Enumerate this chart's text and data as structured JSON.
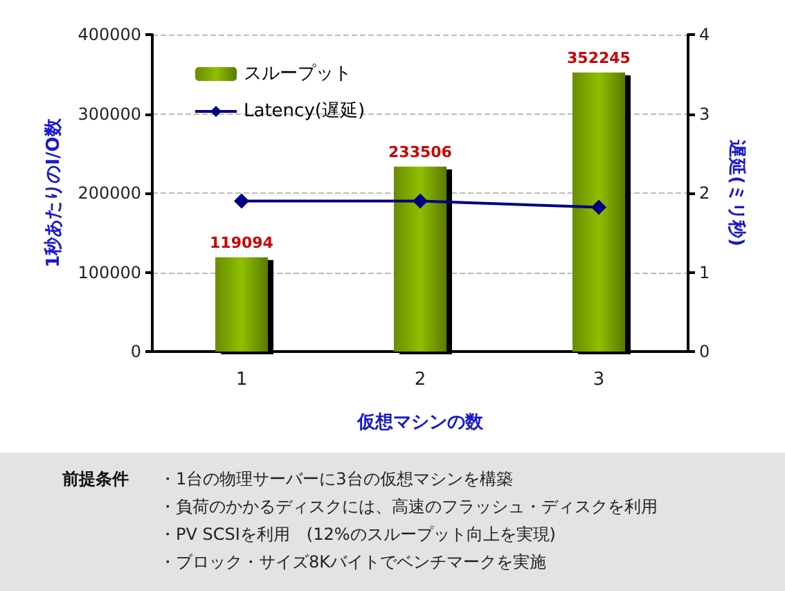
{
  "chart_data": {
    "type": "bar",
    "categories": [
      "1",
      "2",
      "3"
    ],
    "xlabel": "仮想マシンの数",
    "ylabel": "1秒あたりのI/O数",
    "y2label": "遅延(ミリ秒)",
    "series": [
      {
        "name": "スループット",
        "color": "#8fbf00",
        "values": [
          119094,
          233506,
          352245
        ],
        "data_labels": true
      },
      {
        "name": "Latency(遅延)",
        "type": "line",
        "axis": "y2",
        "color": "#000080",
        "values": [
          1.9,
          1.9,
          1.82
        ],
        "marker": "diamond"
      }
    ],
    "ylim": [
      0,
      400000
    ],
    "yticks": [
      0,
      100000,
      200000,
      300000,
      400000
    ],
    "y2lim": [
      0,
      4
    ],
    "y2ticks": [
      0,
      1,
      2,
      3,
      4
    ],
    "grid": "y",
    "legend": "top left",
    "annotations": [
      "前提条件",
      "・1台の物理サーバーに3台の仮想マシンを構築",
      "・負荷のかかるディスクには、高速のフラッシュ・ディスクを利用",
      "・PV SCSIを利用　(12%のスループット向上を実現)",
      "・ブロック・サイズ8Kバイトでベンチマークを実施"
    ]
  }
}
